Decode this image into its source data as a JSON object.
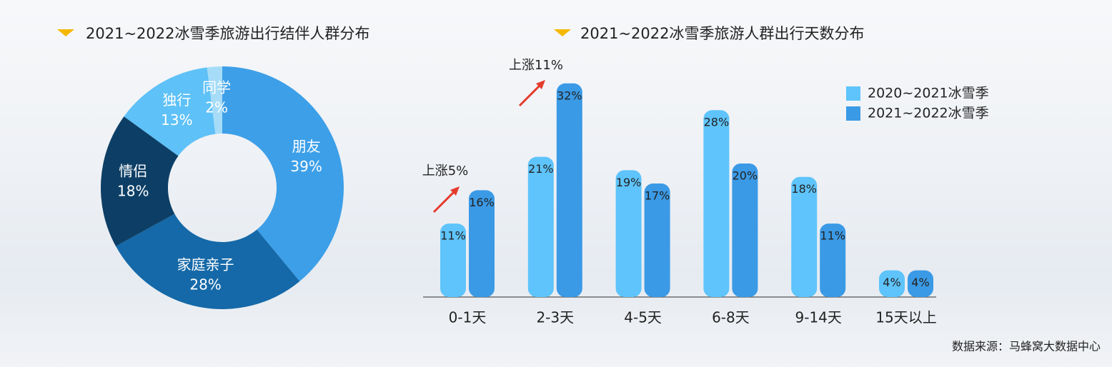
{
  "chart_data": [
    {
      "type": "donut",
      "title": "2021~2022冰雪季旅游出行结伴人群分布",
      "categories": [
        "朋友",
        "家庭亲子",
        "情侣",
        "独行",
        "同学"
      ],
      "values": [
        39,
        28,
        18,
        13,
        2
      ],
      "value_labels": [
        "39%",
        "28%",
        "18%",
        "13%",
        "2%"
      ],
      "colors": [
        "#3d9fe8",
        "#1569a8",
        "#0d3f66",
        "#5ec1f7",
        "#a6dcf8"
      ]
    },
    {
      "type": "bar",
      "title": "2021~2022冰雪季旅游人群出行天数分布",
      "categories": [
        "0-1天",
        "2-3天",
        "4-5天",
        "6-8天",
        "9-14天",
        "15天以上"
      ],
      "series": [
        {
          "name": "2020~2021冰雪季",
          "color": "#5ec4fb",
          "values": [
            11,
            21,
            19,
            28,
            18,
            4
          ],
          "value_labels": [
            "11%",
            "21%",
            "19%",
            "28%",
            "18%",
            "4%"
          ]
        },
        {
          "name": "2021~2022冰雪季",
          "color": "#3b9ae6",
          "values": [
            16,
            32,
            17,
            20,
            11,
            4
          ],
          "value_labels": [
            "16%",
            "32%",
            "17%",
            "20%",
            "11%",
            "4%"
          ]
        }
      ],
      "annotations": [
        "上涨5%",
        "上涨11%"
      ]
    }
  ],
  "source": "数据来源：马蜂窝大数据中心"
}
